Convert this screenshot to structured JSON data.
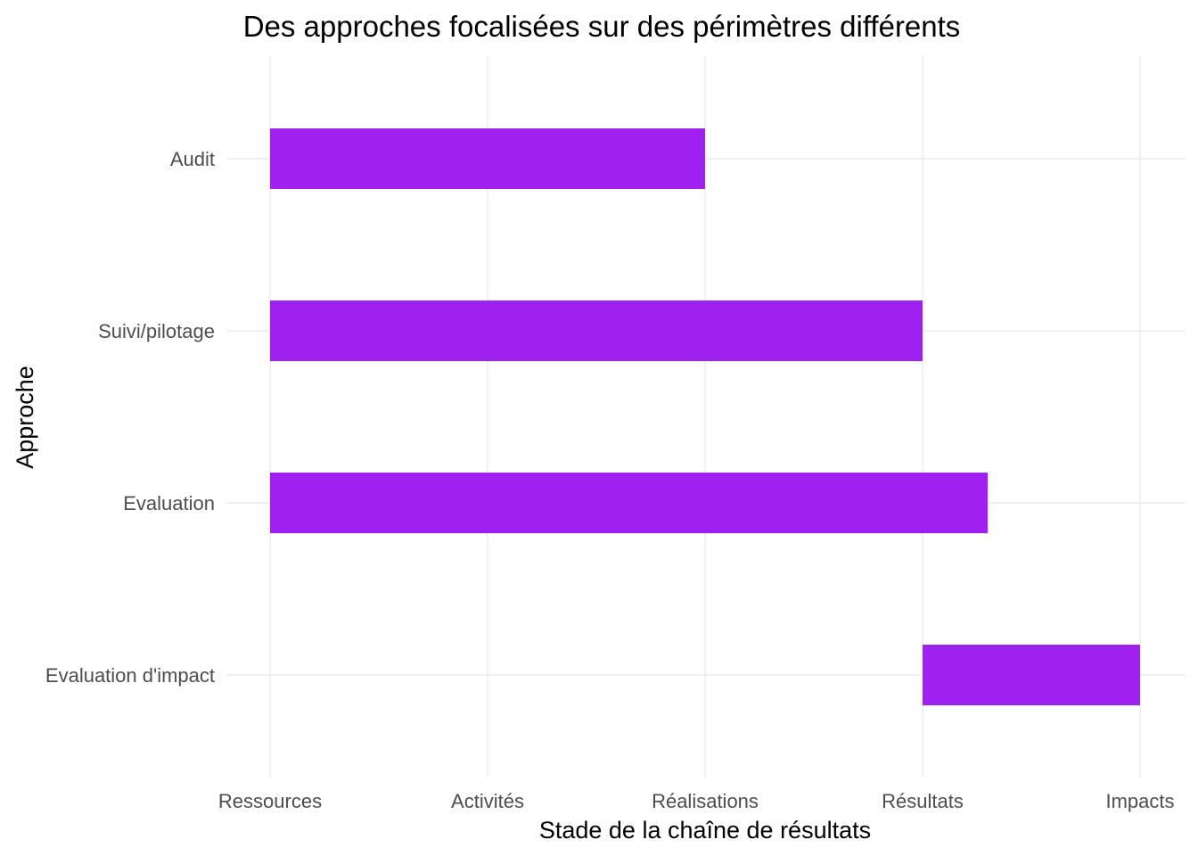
{
  "chart_data": {
    "type": "bar",
    "orientation": "horizontal-range",
    "title": "Des approches focalisées sur des périmètres différents",
    "xlabel": "Stade de la chaîne de résultats",
    "ylabel": "Approche",
    "x_categories": [
      "Ressources",
      "Activités",
      "Réalisations",
      "Résultats",
      "Impacts"
    ],
    "categories": [
      "Audit",
      "Suivi/pilotage",
      "Evaluation",
      "Evaluation d'impact"
    ],
    "bars": [
      {
        "label": "Audit",
        "start": 0,
        "end": 2
      },
      {
        "label": "Suivi/pilotage",
        "start": 0,
        "end": 3
      },
      {
        "label": "Evaluation",
        "start": 0,
        "end": 3.3
      },
      {
        "label": "Evaluation d'impact",
        "start": 3,
        "end": 4
      }
    ],
    "xlim": [
      -0.25,
      4.2
    ],
    "grid": true,
    "legend": "none",
    "bar_color": "#a020f0"
  }
}
